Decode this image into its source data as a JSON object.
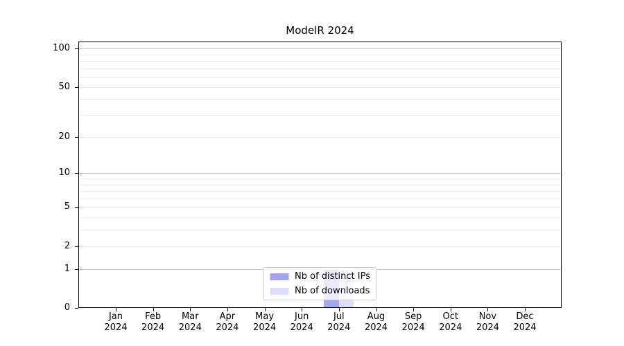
{
  "title": "ModelR 2024",
  "chart_data": {
    "type": "bar",
    "title": "ModelR 2024",
    "categories": [
      "Jan 2024",
      "Feb 2024",
      "Mar 2024",
      "Apr 2024",
      "May 2024",
      "Jun 2024",
      "Jul 2024",
      "Aug 2024",
      "Sep 2024",
      "Oct 2024",
      "Nov 2024",
      "Dec 2024"
    ],
    "series": [
      {
        "name": "Nb of distinct IPs",
        "color": "#a2a5f1",
        "values": [
          0,
          0,
          0,
          0,
          0,
          0,
          1,
          0,
          0,
          0,
          0,
          0
        ]
      },
      {
        "name": "Nb of downloads",
        "color": "#dcdefb",
        "values": [
          0,
          0,
          0,
          0,
          0,
          0,
          1,
          0,
          0,
          0,
          0,
          0
        ]
      }
    ],
    "xlabel": "",
    "ylabel": "",
    "yscale": "log1p",
    "ylim": [
      0,
      114
    ],
    "y_ticks": [
      0,
      1,
      2,
      5,
      10,
      20,
      50,
      100
    ],
    "y_major_gridlines": [
      1,
      10,
      100
    ],
    "y_minor_gridlines": [
      2,
      3,
      4,
      5,
      6,
      7,
      8,
      9,
      20,
      30,
      40,
      50,
      60,
      70,
      80,
      90
    ],
    "grid": true,
    "legend_position": "lower center"
  },
  "colors": {
    "bar_distinct_ips": "#a2a5f1",
    "bar_downloads": "#dcdefb",
    "grid_major": "#c2c2c2",
    "grid_minor": "#ebebeb",
    "spine": "#000000",
    "legend_border": "#cccccc"
  }
}
